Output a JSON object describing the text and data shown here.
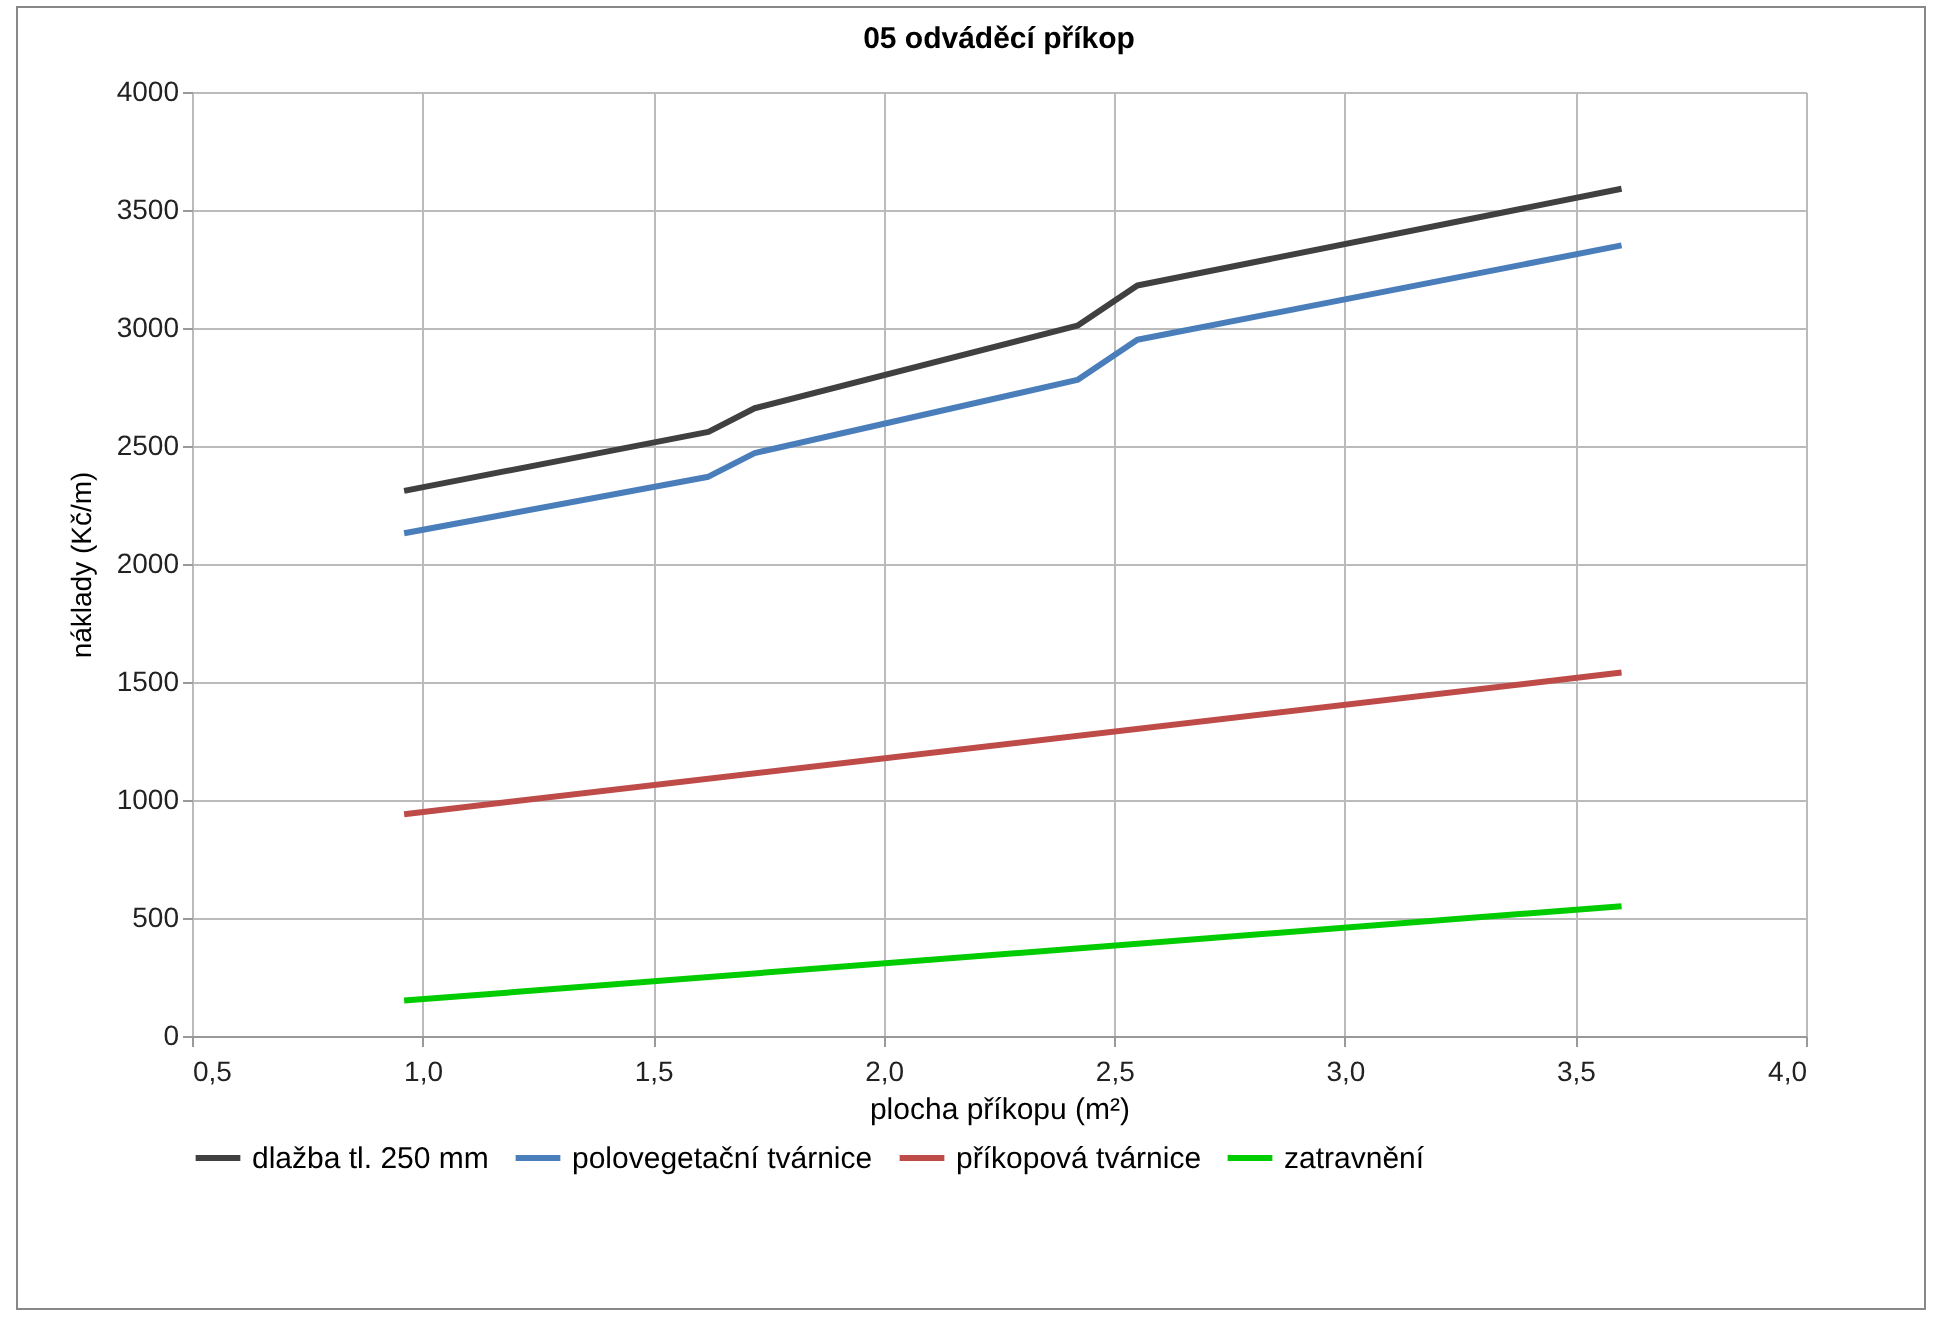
{
  "chart_data": {
    "type": "line",
    "title": "05 odváděcí příkop",
    "xlabel": "plocha příkopu (m²)",
    "ylabel": "náklady (Kč/m)",
    "xlim": [
      0.5,
      4.0
    ],
    "xticks": [
      {
        "value": 0.5,
        "label": "0,5"
      },
      {
        "value": 1.0,
        "label": "1,0"
      },
      {
        "value": 1.5,
        "label": "1,5"
      },
      {
        "value": 2.0,
        "label": "2,0"
      },
      {
        "value": 2.5,
        "label": "2,5"
      },
      {
        "value": 3.0,
        "label": "3,0"
      },
      {
        "value": 3.5,
        "label": "3,5"
      },
      {
        "value": 4.0,
        "label": "4,0"
      }
    ],
    "ylim": [
      0,
      4000
    ],
    "yticks": [
      0,
      500,
      1000,
      1500,
      2000,
      2500,
      3000,
      3500,
      4000
    ],
    "grid": true,
    "legend": "bottom",
    "marker": "none",
    "line_style": "solid",
    "series": [
      {
        "name": "dlažba tl. 250 mm",
        "color": "#404040",
        "x": [
          0.96,
          1.62,
          1.72,
          2.42,
          2.55,
          3.6
        ],
        "values": [
          2310,
          2560,
          2660,
          3010,
          3180,
          3590
        ]
      },
      {
        "name": "polovegetační tvárnice",
        "color": "#4a7ebb",
        "x": [
          0.96,
          1.62,
          1.72,
          2.42,
          2.55,
          3.6
        ],
        "values": [
          2130,
          2370,
          2470,
          2780,
          2950,
          3350
        ]
      },
      {
        "name": "příkopová tvárnice",
        "color": "#be4b48",
        "x": [
          0.96,
          3.6
        ],
        "values": [
          940,
          1540
        ]
      },
      {
        "name": "zatravnění",
        "color": "#00cc00",
        "x": [
          0.96,
          3.6
        ],
        "values": [
          150,
          550
        ]
      }
    ]
  }
}
